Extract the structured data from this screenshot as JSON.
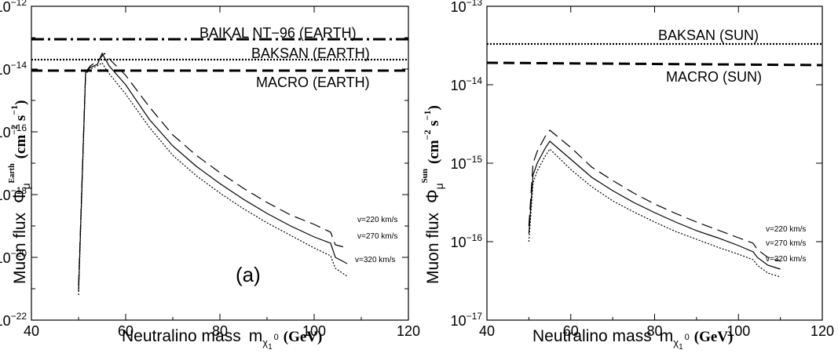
{
  "chart_data": [
    {
      "type": "line",
      "panel_label": "(a)",
      "xlabel": "Neutralino mass",
      "xlabel_symbol": "m",
      "xlabel_sub": "χ",
      "xlabel_sub2": "1",
      "xlabel_sup": "0",
      "xlabel_unit": "(GeV)",
      "ylabel_text": "Muon flux",
      "ylabel_symbol": "Φ",
      "ylabel_sub": "μ",
      "ylabel_sup": "Earth",
      "ylabel_units": "(cm",
      "ylabel_units_exp1": "−2",
      "ylabel_units_mid": " s",
      "ylabel_units_exp2": "−1",
      "ylabel_units_end": ")",
      "xlim": [
        40,
        120
      ],
      "ylim_log10": [
        -22,
        -12
      ],
      "yscale": "log",
      "x_ticks": [
        40,
        60,
        80,
        100,
        120
      ],
      "y_tick_exponents": [
        -22,
        -20,
        -18,
        -16,
        -14,
        -12
      ],
      "y_tick_base": "10",
      "limits": [
        {
          "label": "BAIKAL  NT−96 (EARTH)",
          "style": "dashdot",
          "y_log10": -13.05
        },
        {
          "label": "BAKSAN  (EARTH)",
          "style": "dotted",
          "y_log10": -13.7
        },
        {
          "label": "MACRO  (EARTH)",
          "style": "dashed",
          "y_log10": -14.05
        }
      ],
      "series": [
        {
          "name": "v=220 km/s",
          "style": "dashed",
          "x": [
            50,
            51.5,
            52.5,
            54,
            55.5,
            57,
            60,
            65,
            70,
            75,
            80,
            85,
            90,
            95,
            100,
            103.5,
            104.5,
            107
          ],
          "y_log10": [
            -20.9,
            -14.1,
            -13.9,
            -13.75,
            -13.5,
            -13.75,
            -14.2,
            -15.2,
            -16.1,
            -16.75,
            -17.3,
            -17.8,
            -18.25,
            -18.65,
            -18.95,
            -19.2,
            -19.6,
            -19.7
          ]
        },
        {
          "name": "v=270 km/s",
          "style": "solid",
          "x": [
            50,
            51.5,
            52.5,
            54,
            55,
            56.5,
            60,
            65,
            70,
            75,
            80,
            85,
            90,
            95,
            100,
            103.5,
            104.5,
            107
          ],
          "y_log10": [
            -21.1,
            -14.1,
            -13.95,
            -13.85,
            -13.5,
            -13.9,
            -14.5,
            -15.6,
            -16.45,
            -17.1,
            -17.65,
            -18.15,
            -18.6,
            -19.0,
            -19.35,
            -19.55,
            -20.0,
            -20.2
          ]
        },
        {
          "name": "v=320 km/s",
          "style": "dotted",
          "x": [
            50,
            51.5,
            52.5,
            54,
            55,
            56,
            60,
            65,
            70,
            75,
            80,
            85,
            90,
            95,
            100,
            103.5,
            104.5,
            107
          ],
          "y_log10": [
            -21.2,
            -14.15,
            -14.0,
            -13.9,
            -13.8,
            -14.05,
            -14.8,
            -15.85,
            -16.75,
            -17.4,
            -17.95,
            -18.45,
            -18.9,
            -19.3,
            -19.7,
            -19.95,
            -20.35,
            -20.6
          ]
        }
      ]
    },
    {
      "type": "line",
      "xlabel": "Neutralino mass",
      "xlabel_symbol": "m",
      "xlabel_sub": "χ",
      "xlabel_sub2": "1",
      "xlabel_sup": "0",
      "xlabel_unit": "(GeV)",
      "ylabel_text": "Muon flux",
      "ylabel_symbol": "Φ",
      "ylabel_sub": "μ",
      "ylabel_sup": "Sun",
      "ylabel_units": "(cm",
      "ylabel_units_exp1": "−2",
      "ylabel_units_mid": " s",
      "ylabel_units_exp2": "−1",
      "ylabel_units_end": ")",
      "xlim": [
        40,
        120
      ],
      "ylim_log10": [
        -17,
        -13
      ],
      "yscale": "log",
      "x_ticks": [
        40,
        60,
        80,
        100,
        120
      ],
      "y_tick_exponents": [
        -17,
        -16,
        -15,
        -14,
        -13
      ],
      "y_tick_base": "10",
      "limits": [
        {
          "label": "BAKSAN  (SUN)",
          "style": "dotted",
          "y_log10": -13.48
        },
        {
          "label": "MACRO  (SUN)",
          "style": "dashed",
          "y_log10": [
            -13.72,
            -13.75
          ]
        }
      ],
      "series": [
        {
          "name": "v=220 km/s",
          "style": "dashed",
          "x": [
            50,
            51,
            52,
            54,
            55,
            60,
            65,
            70,
            75,
            80,
            85,
            90,
            95,
            100,
            103.5,
            104.5,
            107,
            110
          ],
          "y_log10": [
            -15.8,
            -15.0,
            -14.85,
            -14.65,
            -14.58,
            -14.8,
            -15.05,
            -15.22,
            -15.38,
            -15.52,
            -15.64,
            -15.75,
            -15.85,
            -15.95,
            -16.02,
            -16.1,
            -16.2,
            -16.25
          ]
        },
        {
          "name": "v=270 km/s",
          "style": "solid",
          "x": [
            50,
            51,
            52,
            54,
            55,
            60,
            65,
            70,
            75,
            80,
            85,
            90,
            95,
            100,
            103.5,
            104.5,
            107,
            110
          ],
          "y_log10": [
            -15.9,
            -15.15,
            -15.0,
            -14.8,
            -14.72,
            -14.95,
            -15.18,
            -15.35,
            -15.5,
            -15.63,
            -15.75,
            -15.86,
            -15.95,
            -16.05,
            -16.13,
            -16.2,
            -16.3,
            -16.35
          ]
        },
        {
          "name": "v=320 km/s",
          "style": "dotted",
          "x": [
            50,
            51,
            52,
            54,
            55,
            60,
            65,
            70,
            75,
            80,
            85,
            90,
            95,
            100,
            103.5,
            104.5,
            107,
            110
          ],
          "y_log10": [
            -16.0,
            -15.25,
            -15.1,
            -14.9,
            -14.82,
            -15.08,
            -15.3,
            -15.48,
            -15.62,
            -15.75,
            -15.87,
            -15.97,
            -16.07,
            -16.16,
            -16.23,
            -16.3,
            -16.4,
            -16.45
          ]
        }
      ]
    }
  ]
}
